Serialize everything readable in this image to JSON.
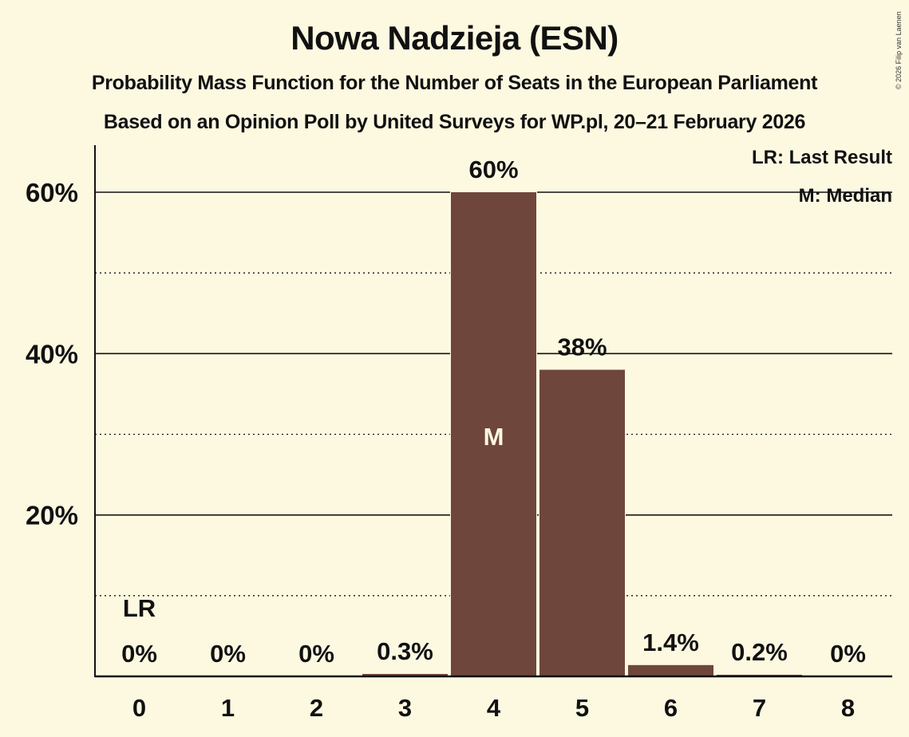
{
  "header": {
    "title": "Nowa Nadzieja (ESN)",
    "subtitle1": "Probability Mass Function for the Number of Seats in the European Parliament",
    "subtitle2": "Based on an Opinion Poll by United Surveys for WP.pl, 20–21 February 2026",
    "copyright": "© 2026 Filip van Laenen"
  },
  "legend": {
    "last_result": "LR: Last Result",
    "median": "M: Median"
  },
  "colors": {
    "background": "#fdf9e1",
    "bar": "#6f463b",
    "text": "#111111"
  },
  "chart_data": {
    "type": "bar",
    "title": "Nowa Nadzieja (ESN)",
    "subtitle": "Probability Mass Function for the Number of Seats in the European Parliament",
    "xlabel": "",
    "ylabel": "",
    "categories": [
      "0",
      "1",
      "2",
      "3",
      "4",
      "5",
      "6",
      "7",
      "8"
    ],
    "values": [
      0,
      0,
      0,
      0.3,
      60,
      38,
      1.4,
      0.2,
      0
    ],
    "value_labels": [
      "0%",
      "0%",
      "0%",
      "0.3%",
      "60%",
      "38%",
      "1.4%",
      "0.2%",
      "0%"
    ],
    "ylim": [
      0,
      65
    ],
    "yticks": [
      20,
      40,
      60
    ],
    "ytick_labels": [
      "20%",
      "40%",
      "60%"
    ],
    "minor_gridlines": [
      10,
      30,
      50
    ],
    "grid": true,
    "annotations": [
      {
        "category": "0",
        "text": "LR",
        "meaning": "Last Result"
      },
      {
        "category": "4",
        "text": "M",
        "meaning": "Median"
      }
    ],
    "legend_position": "top-right"
  }
}
